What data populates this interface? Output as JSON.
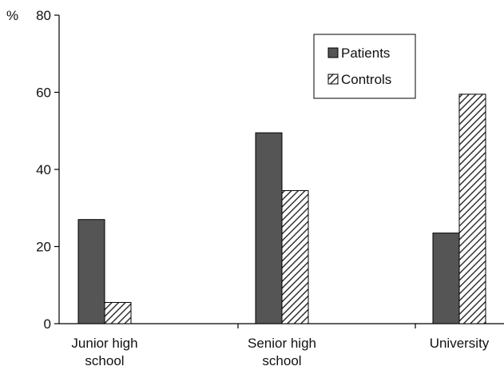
{
  "chart_data": {
    "type": "bar",
    "categories": [
      [
        "Junior high",
        "school"
      ],
      [
        "Senior high",
        "school"
      ],
      [
        "University"
      ]
    ],
    "series": [
      {
        "name": "Patients",
        "values": [
          27,
          49.5,
          23.5
        ],
        "fill": "#555555",
        "pattern": "solid"
      },
      {
        "name": "Controls",
        "values": [
          5.5,
          34.5,
          59.5
        ],
        "fill": "#ffffff",
        "pattern": "diagonal-hatch"
      }
    ],
    "ylabel": "%",
    "ylim": [
      0,
      80
    ],
    "yticks": [
      0,
      20,
      40,
      60,
      80
    ],
    "grid": false,
    "legend_position": "top-right"
  }
}
